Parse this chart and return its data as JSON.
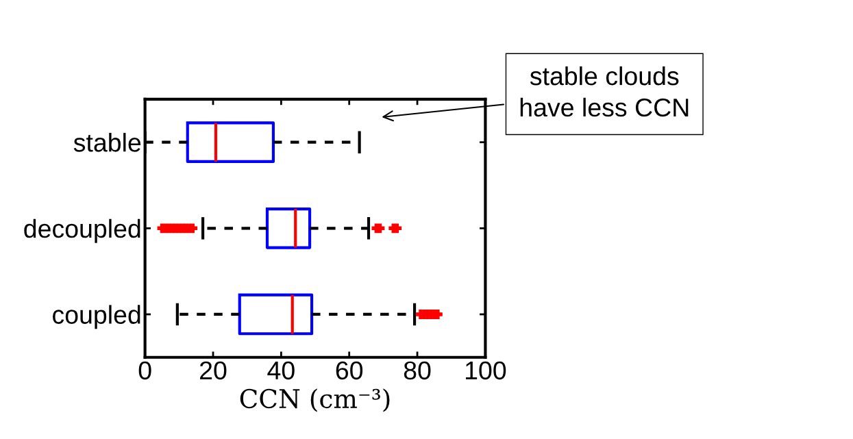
{
  "chart_data": {
    "type": "box",
    "orientation": "horizontal",
    "xlabel": "CCN (cm⁻³)",
    "categories": [
      "stable",
      "decoupled",
      "coupled"
    ],
    "series": [
      {
        "color": "#0000ff",
        "boxes": [
          {
            "low": 0,
            "q1": 12.5,
            "median": 20.8,
            "q3": 37.7,
            "high": 63
          },
          {
            "low": 17,
            "q1": 35.9,
            "median": 44.2,
            "q3": 48.4,
            "high": 65.7,
            "outliers": [
              5,
              6,
              7,
              8,
              9,
              10,
              11,
              12,
              13,
              14,
              68,
              69,
              73,
              74
            ]
          },
          {
            "low": 9.5,
            "q1": 27.8,
            "median": 43.3,
            "q3": 49,
            "high": 79.2,
            "outliers": [
              81,
              82,
              83,
              84,
              85,
              86
            ]
          }
        ]
      }
    ],
    "xlim": [
      0,
      100
    ],
    "xticks": [
      0,
      20,
      40,
      60,
      80,
      100
    ],
    "grid": false,
    "annotations": [
      "stable clouds\nhave less CCN"
    ]
  }
}
